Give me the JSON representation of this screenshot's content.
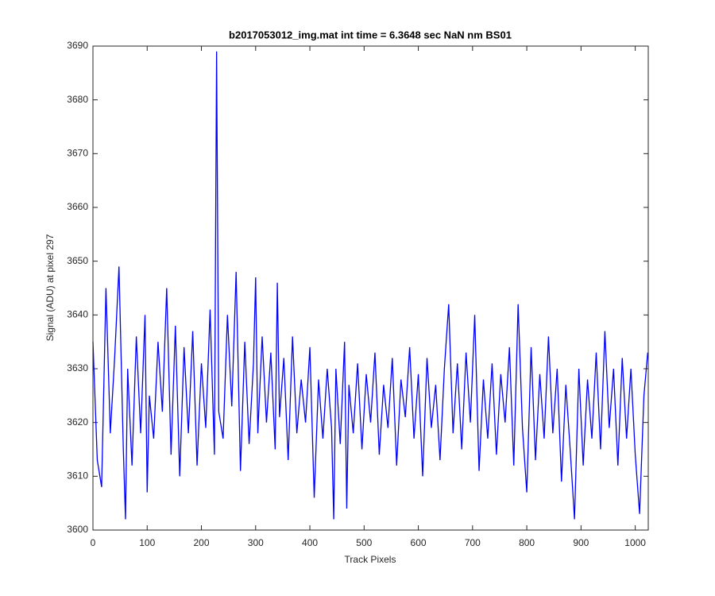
{
  "chart_data": {
    "type": "line",
    "title": "b2017053012_img.mat int time = 6.3648 sec  NaN nm BS01",
    "x_label": "Track Pixels",
    "y_label": "Signal (ADU) at pixel 297",
    "xlim": [
      0,
      1024
    ],
    "ylim": [
      3600,
      3690
    ],
    "xticks": [
      0,
      100,
      200,
      300,
      400,
      500,
      600,
      700,
      800,
      900,
      1000
    ],
    "yticks": [
      3600,
      3610,
      3620,
      3630,
      3640,
      3650,
      3660,
      3670,
      3680,
      3690
    ],
    "grid": false,
    "series": [
      {
        "name": "Signal",
        "color": "#0000ff",
        "x": [
          0,
          8,
          16,
          24,
          32,
          40,
          48,
          56,
          60,
          64,
          72,
          80,
          88,
          96,
          100,
          104,
          112,
          120,
          128,
          136,
          144,
          152,
          160,
          168,
          176,
          184,
          192,
          200,
          208,
          216,
          224,
          228,
          232,
          240,
          248,
          256,
          264,
          272,
          280,
          288,
          296,
          300,
          304,
          312,
          320,
          328,
          336,
          340,
          344,
          352,
          360,
          368,
          376,
          384,
          392,
          400,
          408,
          416,
          424,
          432,
          440,
          444,
          448,
          456,
          464,
          468,
          472,
          480,
          488,
          496,
          504,
          512,
          520,
          528,
          536,
          544,
          552,
          560,
          568,
          576,
          584,
          592,
          600,
          608,
          616,
          624,
          632,
          640,
          648,
          656,
          664,
          672,
          680,
          688,
          696,
          704,
          712,
          720,
          728,
          736,
          744,
          752,
          760,
          768,
          776,
          784,
          792,
          800,
          808,
          816,
          824,
          832,
          840,
          848,
          856,
          864,
          872,
          880,
          888,
          896,
          904,
          912,
          920,
          928,
          936,
          944,
          952,
          960,
          968,
          976,
          984,
          992,
          1000,
          1008,
          1016,
          1023
        ],
        "values": [
          3635,
          3613,
          3608,
          3645,
          3618,
          3632,
          3649,
          3615,
          3602,
          3630,
          3612,
          3636,
          3618,
          3640,
          3607,
          3625,
          3617,
          3635,
          3622,
          3645,
          3614,
          3638,
          3610,
          3634,
          3618,
          3637,
          3612,
          3631,
          3619,
          3641,
          3614,
          3689,
          3622,
          3617,
          3640,
          3623,
          3648,
          3611,
          3635,
          3616,
          3631,
          3647,
          3618,
          3636,
          3620,
          3633,
          3615,
          3646,
          3621,
          3632,
          3613,
          3636,
          3618,
          3628,
          3620,
          3634,
          3606,
          3628,
          3617,
          3630,
          3619,
          3602,
          3630,
          3616,
          3635,
          3604,
          3627,
          3618,
          3631,
          3615,
          3629,
          3620,
          3633,
          3614,
          3627,
          3619,
          3632,
          3612,
          3628,
          3621,
          3634,
          3617,
          3629,
          3610,
          3632,
          3619,
          3627,
          3613,
          3630,
          3642,
          3618,
          3631,
          3615,
          3633,
          3620,
          3640,
          3611,
          3628,
          3617,
          3631,
          3614,
          3629,
          3620,
          3634,
          3612,
          3642,
          3619,
          3607,
          3634,
          3613,
          3629,
          3617,
          3636,
          3618,
          3630,
          3609,
          3627,
          3615,
          3602,
          3630,
          3612,
          3628,
          3617,
          3633,
          3615,
          3637,
          3619,
          3630,
          3612,
          3632,
          3617,
          3630,
          3614,
          3603,
          3625,
          3633
        ]
      }
    ]
  }
}
